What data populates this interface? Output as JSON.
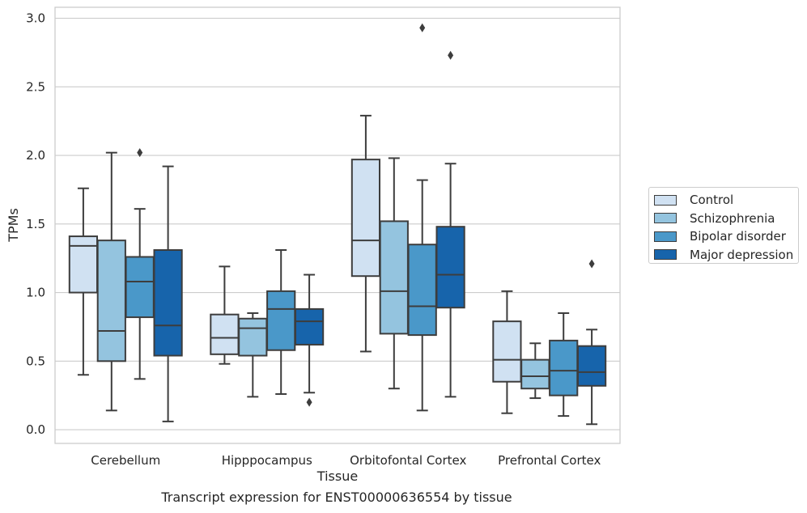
{
  "chart_data": {
    "type": "box",
    "xlabel": "Tissue",
    "ylabel": "TPMs",
    "caption": "Transcript expression for ENST00000636554 by tissue",
    "ylim": [
      -0.1,
      3.08
    ],
    "yticks": [
      0.0,
      0.5,
      1.0,
      1.5,
      2.0,
      2.5,
      3.0
    ],
    "ytick_labels": [
      "0.0",
      "0.5",
      "1.0",
      "1.5",
      "2.0",
      "2.5",
      "3.0"
    ],
    "grid": "horizontal",
    "legend_position": "right",
    "categories": [
      "Cerebellum",
      "Hipppocampus",
      "Orbitofontal Cortex",
      "Prefrontal Cortex"
    ],
    "series": [
      {
        "name": "Control",
        "color": "#d0e1f2",
        "boxes": [
          {
            "whislo": 0.4,
            "q1": 1.0,
            "med": 1.34,
            "q3": 1.41,
            "whishi": 1.76,
            "fliers": []
          },
          {
            "whislo": 0.48,
            "q1": 0.55,
            "med": 0.67,
            "q3": 0.84,
            "whishi": 1.19,
            "fliers": []
          },
          {
            "whislo": 0.57,
            "q1": 1.12,
            "med": 1.38,
            "q3": 1.97,
            "whishi": 2.29,
            "fliers": []
          },
          {
            "whislo": 0.12,
            "q1": 0.35,
            "med": 0.51,
            "q3": 0.79,
            "whishi": 1.01,
            "fliers": []
          }
        ]
      },
      {
        "name": "Schizophrenia",
        "color": "#94c4df",
        "boxes": [
          {
            "whislo": 0.14,
            "q1": 0.5,
            "med": 0.72,
            "q3": 1.38,
            "whishi": 2.02,
            "fliers": []
          },
          {
            "whislo": 0.24,
            "q1": 0.54,
            "med": 0.74,
            "q3": 0.81,
            "whishi": 0.85,
            "fliers": []
          },
          {
            "whislo": 0.3,
            "q1": 0.7,
            "med": 1.01,
            "q3": 1.52,
            "whishi": 1.98,
            "fliers": []
          },
          {
            "whislo": 0.23,
            "q1": 0.3,
            "med": 0.39,
            "q3": 0.51,
            "whishi": 0.63,
            "fliers": []
          }
        ]
      },
      {
        "name": "Bipolar disorder",
        "color": "#4a98c9",
        "boxes": [
          {
            "whislo": 0.37,
            "q1": 0.82,
            "med": 1.08,
            "q3": 1.26,
            "whishi": 1.61,
            "fliers": [
              2.02
            ]
          },
          {
            "whislo": 0.26,
            "q1": 0.58,
            "med": 0.88,
            "q3": 1.01,
            "whishi": 1.31,
            "fliers": []
          },
          {
            "whislo": 0.14,
            "q1": 0.69,
            "med": 0.9,
            "q3": 1.35,
            "whishi": 1.82,
            "fliers": [
              2.93
            ]
          },
          {
            "whislo": 0.1,
            "q1": 0.25,
            "med": 0.43,
            "q3": 0.65,
            "whishi": 0.85,
            "fliers": []
          }
        ]
      },
      {
        "name": "Major depression",
        "color": "#1764ab",
        "boxes": [
          {
            "whislo": 0.06,
            "q1": 0.54,
            "med": 0.76,
            "q3": 1.31,
            "whishi": 1.92,
            "fliers": []
          },
          {
            "whislo": 0.27,
            "q1": 0.62,
            "med": 0.79,
            "q3": 0.88,
            "whishi": 1.13,
            "fliers": [
              0.2
            ]
          },
          {
            "whislo": 0.24,
            "q1": 0.89,
            "med": 1.13,
            "q3": 1.48,
            "whishi": 1.94,
            "fliers": [
              2.73
            ]
          },
          {
            "whislo": 0.04,
            "q1": 0.32,
            "med": 0.42,
            "q3": 0.61,
            "whishi": 0.73,
            "fliers": [
              1.21
            ]
          }
        ]
      }
    ]
  }
}
